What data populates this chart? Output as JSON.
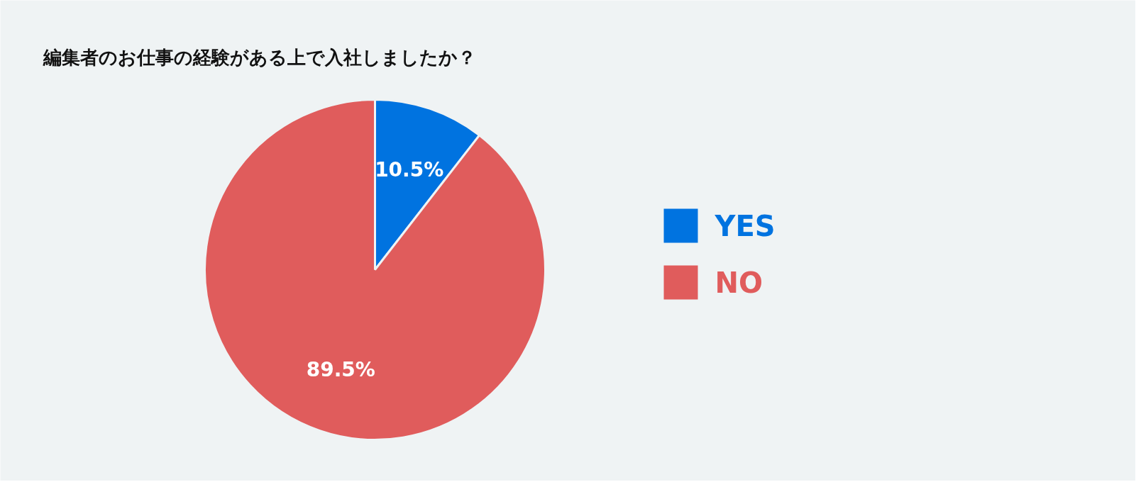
{
  "chart_data": {
    "type": "pie",
    "title": "編集者のお仕事の経験がある上で入社しましたか？",
    "categories": [
      "YES",
      "NO"
    ],
    "values": [
      10.5,
      89.5
    ],
    "colors": [
      "#0073e0",
      "#e05c5c"
    ],
    "value_labels": [
      "10.5%",
      "89.5%"
    ],
    "legend": "right"
  }
}
